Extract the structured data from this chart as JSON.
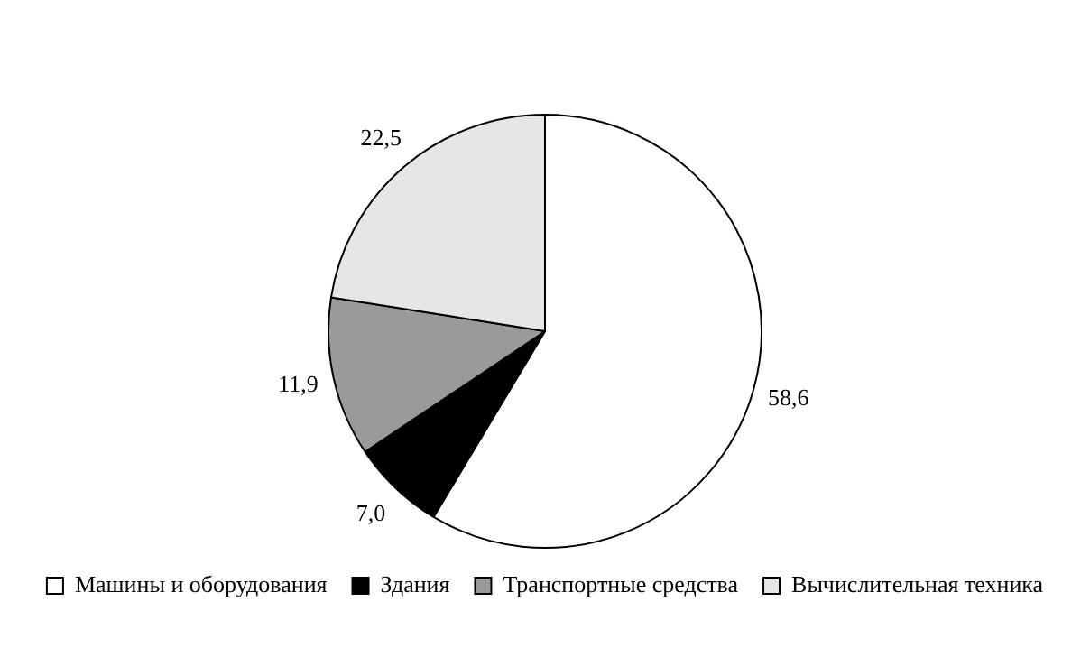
{
  "chart_data": {
    "type": "pie",
    "categories": [
      "Машины и оборудования",
      "Здания",
      "Транспортные средства",
      "Вычислительная техника"
    ],
    "values": [
      58.6,
      7.0,
      11.9,
      22.5
    ],
    "value_labels": [
      "58,6",
      "7,0",
      "11,9",
      "22,5"
    ],
    "colors": [
      "#ffffff",
      "#000000",
      "#9a9a9a",
      "#e6e6e6"
    ],
    "legend": "bottom"
  }
}
